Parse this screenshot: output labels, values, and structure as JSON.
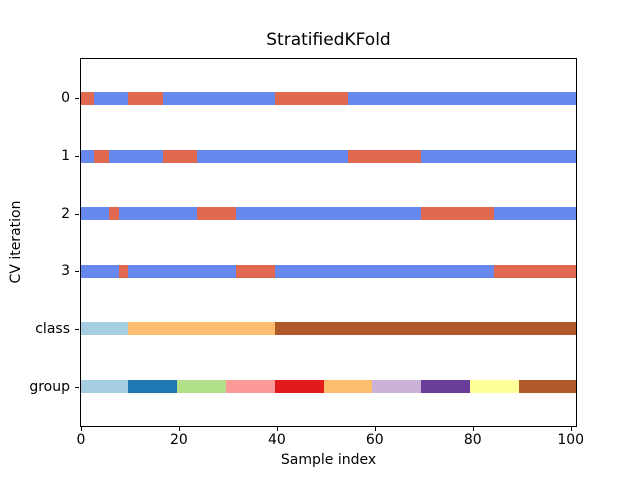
{
  "chart_data": {
    "type": "heatmap",
    "title": "StratifiedKFold",
    "xlabel": "Sample index",
    "ylabel": "CV iteration",
    "x_ticks": [
      0,
      20,
      40,
      60,
      80,
      100
    ],
    "xlim": [
      -0.3,
      101.1
    ],
    "n_samples": 100,
    "legend": "none",
    "palette": {
      "train": "#6788ee",
      "test": "#e0694f",
      "paired_lightblue": "#a6cee3",
      "paired_darkblue": "#1f78b4",
      "paired_lightgreen": "#b2df8a",
      "paired_pink": "#fb9a99",
      "paired_red": "#e31a1c",
      "paired_orange": "#fdbf6f",
      "paired_lightpurple": "#cab2d6",
      "paired_darkpurple": "#6a3d9a",
      "paired_yellow": "#ffff99",
      "paired_brown": "#b15928"
    },
    "rows": [
      {
        "label": "0",
        "y": 0.5,
        "segments": [
          {
            "from": 0,
            "to": 3,
            "color": "test"
          },
          {
            "from": 3,
            "to": 10,
            "color": "train"
          },
          {
            "from": 10,
            "to": 17,
            "color": "test"
          },
          {
            "from": 17,
            "to": 40,
            "color": "train"
          },
          {
            "from": 40,
            "to": 55,
            "color": "test"
          },
          {
            "from": 55,
            "to": 100,
            "color": "train"
          }
        ]
      },
      {
        "label": "1",
        "y": 1.5,
        "segments": [
          {
            "from": 0,
            "to": 3,
            "color": "train"
          },
          {
            "from": 3,
            "to": 6,
            "color": "test"
          },
          {
            "from": 6,
            "to": 17,
            "color": "train"
          },
          {
            "from": 17,
            "to": 24,
            "color": "test"
          },
          {
            "from": 24,
            "to": 55,
            "color": "train"
          },
          {
            "from": 55,
            "to": 70,
            "color": "test"
          },
          {
            "from": 70,
            "to": 100,
            "color": "train"
          }
        ]
      },
      {
        "label": "2",
        "y": 2.5,
        "segments": [
          {
            "from": 0,
            "to": 6,
            "color": "train"
          },
          {
            "from": 6,
            "to": 8,
            "color": "test"
          },
          {
            "from": 8,
            "to": 24,
            "color": "train"
          },
          {
            "from": 24,
            "to": 32,
            "color": "test"
          },
          {
            "from": 32,
            "to": 70,
            "color": "train"
          },
          {
            "from": 70,
            "to": 85,
            "color": "test"
          },
          {
            "from": 85,
            "to": 100,
            "color": "train"
          }
        ]
      },
      {
        "label": "3",
        "y": 3.5,
        "segments": [
          {
            "from": 0,
            "to": 8,
            "color": "train"
          },
          {
            "from": 8,
            "to": 10,
            "color": "test"
          },
          {
            "from": 10,
            "to": 32,
            "color": "train"
          },
          {
            "from": 32,
            "to": 40,
            "color": "test"
          },
          {
            "from": 40,
            "to": 85,
            "color": "train"
          },
          {
            "from": 85,
            "to": 100,
            "color": "test"
          }
        ]
      },
      {
        "label": "class",
        "y": 4.5,
        "segments": [
          {
            "from": 0,
            "to": 10,
            "color": "paired_lightblue"
          },
          {
            "from": 10,
            "to": 40,
            "color": "paired_orange"
          },
          {
            "from": 40,
            "to": 100,
            "color": "paired_brown"
          }
        ]
      },
      {
        "label": "group",
        "y": 5.5,
        "segments": [
          {
            "from": 0,
            "to": 10,
            "color": "paired_lightblue"
          },
          {
            "from": 10,
            "to": 20,
            "color": "paired_darkblue"
          },
          {
            "from": 20,
            "to": 30,
            "color": "paired_lightgreen"
          },
          {
            "from": 30,
            "to": 40,
            "color": "paired_pink"
          },
          {
            "from": 40,
            "to": 50,
            "color": "paired_red"
          },
          {
            "from": 50,
            "to": 60,
            "color": "paired_orange"
          },
          {
            "from": 60,
            "to": 70,
            "color": "paired_lightpurple"
          },
          {
            "from": 70,
            "to": 80,
            "color": "paired_darkpurple"
          },
          {
            "from": 80,
            "to": 90,
            "color": "paired_yellow"
          },
          {
            "from": 90,
            "to": 100,
            "color": "paired_brown"
          }
        ]
      }
    ]
  }
}
